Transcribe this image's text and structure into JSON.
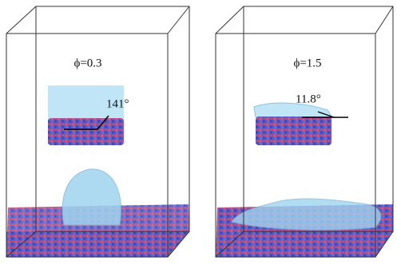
{
  "panels": [
    {
      "label": "ϕ=0.3",
      "angle": "141°"
    },
    {
      "label": "ϕ=1.5",
      "angle": "11.8°"
    }
  ]
}
